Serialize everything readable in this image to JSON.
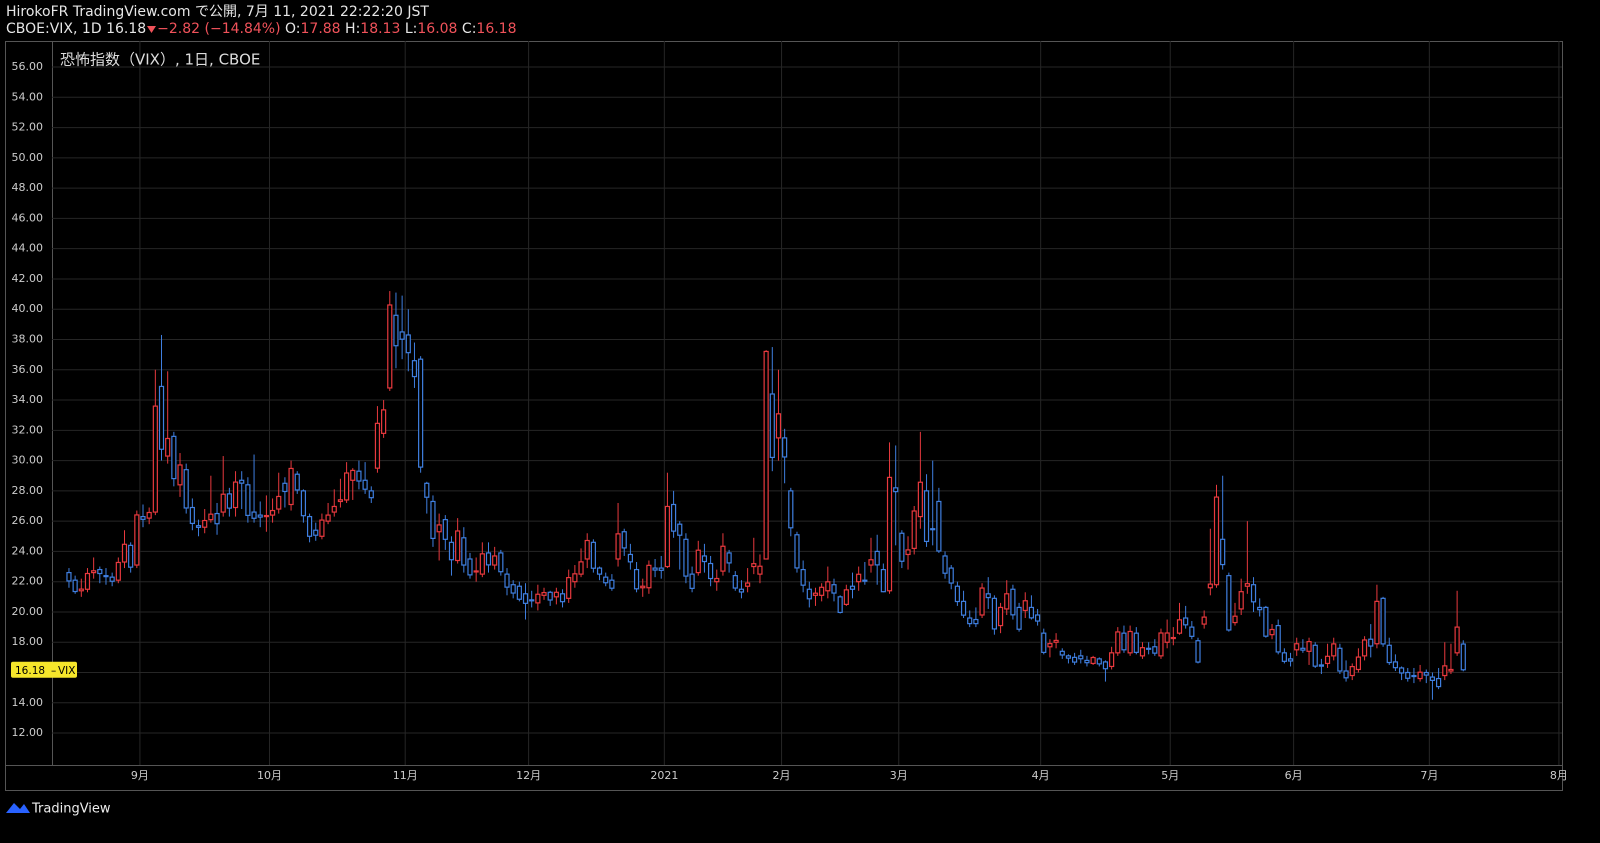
{
  "header": {
    "publisher": "HirokoFR TradingView.com で公開, 7月 11, 2021 22:22:20 JST",
    "symbol": "CBOE:VIX, 1D",
    "change": "−2.82 (−14.84%)",
    "o": "O:",
    "h": "H:",
    "l": "L:",
    "c": "C:"
  },
  "footer": {
    "brand": "TradingView"
  },
  "chart_data": {
    "type": "candlestick",
    "title": "恐怖指数（VIX）, 1日, CBOE",
    "price_label": "VIX",
    "up_color": "#e8393e",
    "down_color": "#3f7fe0",
    "grid": true,
    "ylim": [
      9.89,
      57.72
    ],
    "yticks": [
      {
        "value": 12,
        "label": "12.00"
      },
      {
        "value": 14,
        "label": "14.00"
      },
      {
        "value": 16,
        "label": "16.00"
      },
      {
        "value": 18,
        "label": "18.00"
      },
      {
        "value": 20,
        "label": "20.00"
      },
      {
        "value": 22,
        "label": "22.00"
      },
      {
        "value": 24,
        "label": "24.00"
      },
      {
        "value": 26,
        "label": "26.00"
      },
      {
        "value": 28,
        "label": "28.00"
      },
      {
        "value": 30,
        "label": "30.00"
      },
      {
        "value": 32,
        "label": "32.00"
      },
      {
        "value": 34,
        "label": "34.00"
      },
      {
        "value": 36,
        "label": "36.00"
      },
      {
        "value": 38,
        "label": "38.00"
      },
      {
        "value": 40,
        "label": "40.00"
      },
      {
        "value": 42,
        "label": "42.00"
      },
      {
        "value": 44,
        "label": "44.00"
      },
      {
        "value": 46,
        "label": "46.00"
      },
      {
        "value": 48,
        "label": "48.00"
      },
      {
        "value": 50,
        "label": "50.00"
      },
      {
        "value": 52,
        "label": "52.00"
      },
      {
        "value": 54,
        "label": "54.00"
      },
      {
        "value": 56,
        "label": "56.00"
      }
    ],
    "xlim": [
      -2.75,
      242
    ],
    "xticks": [
      {
        "value": 11.5,
        "label": "9月"
      },
      {
        "value": 32.5,
        "label": "10月"
      },
      {
        "value": 54.5,
        "label": "11月"
      },
      {
        "value": 74.5,
        "label": "12月"
      },
      {
        "value": 96.5,
        "label": "2021"
      },
      {
        "value": 115.5,
        "label": "2月"
      },
      {
        "value": 134.5,
        "label": "3月"
      },
      {
        "value": 157.5,
        "label": "4月"
      },
      {
        "value": 178.5,
        "label": "5月"
      },
      {
        "value": 198.5,
        "label": "6月"
      },
      {
        "value": 220.5,
        "label": "7月"
      },
      {
        "value": 241.5,
        "label": "8月"
      }
    ],
    "ohlc": [
      [
        22.6,
        22.9,
        21.6,
        22.05
      ],
      [
        22.1,
        22.4,
        21.2,
        21.35
      ],
      [
        21.4,
        22.2,
        21.0,
        21.51
      ],
      [
        21.5,
        22.9,
        21.3,
        22.54
      ],
      [
        22.6,
        23.6,
        22.2,
        22.72
      ],
      [
        22.8,
        23.0,
        21.9,
        22.54
      ],
      [
        22.4,
        22.9,
        21.8,
        22.37
      ],
      [
        22.3,
        22.6,
        21.7,
        22.03
      ],
      [
        22.1,
        23.6,
        21.9,
        23.27
      ],
      [
        23.3,
        25.4,
        22.9,
        24.47
      ],
      [
        24.4,
        24.6,
        22.6,
        22.96
      ],
      [
        23.1,
        26.7,
        22.9,
        26.41
      ],
      [
        26.3,
        27.1,
        25.6,
        26.12
      ],
      [
        26.2,
        26.9,
        25.8,
        26.57
      ],
      [
        26.6,
        36.0,
        26.4,
        33.6
      ],
      [
        34.9,
        38.3,
        30.0,
        30.75
      ],
      [
        30.3,
        35.9,
        29.8,
        31.46
      ],
      [
        31.6,
        31.9,
        28.3,
        28.81
      ],
      [
        28.4,
        30.5,
        27.6,
        29.71
      ],
      [
        29.4,
        29.8,
        26.5,
        26.87
      ],
      [
        26.9,
        27.5,
        25.4,
        25.85
      ],
      [
        25.7,
        26.1,
        25.0,
        25.59
      ],
      [
        25.6,
        26.8,
        25.2,
        26.04
      ],
      [
        26.1,
        29.0,
        25.9,
        26.46
      ],
      [
        26.5,
        27.2,
        25.1,
        25.83
      ],
      [
        26.6,
        30.3,
        26.3,
        27.78
      ],
      [
        27.8,
        28.2,
        26.3,
        26.86
      ],
      [
        26.9,
        29.3,
        26.3,
        28.58
      ],
      [
        28.7,
        29.3,
        26.8,
        28.51
      ],
      [
        28.4,
        28.9,
        25.9,
        26.38
      ],
      [
        26.6,
        30.4,
        25.9,
        26.19
      ],
      [
        26.4,
        27.3,
        25.6,
        26.27
      ],
      [
        26.3,
        27.7,
        25.3,
        26.37
      ],
      [
        26.4,
        27.5,
        25.9,
        26.7
      ],
      [
        26.8,
        29.2,
        26.5,
        27.63
      ],
      [
        28.5,
        28.9,
        26.9,
        27.96
      ],
      [
        27.1,
        30.0,
        26.7,
        29.48
      ],
      [
        29.1,
        29.3,
        27.8,
        28.06
      ],
      [
        28.0,
        28.1,
        25.9,
        26.36
      ],
      [
        26.3,
        26.5,
        24.6,
        25.0
      ],
      [
        25.4,
        25.9,
        24.7,
        25.07
      ],
      [
        25.0,
        26.5,
        24.8,
        26.07
      ],
      [
        26.0,
        27.2,
        25.8,
        26.4
      ],
      [
        26.6,
        28.1,
        26.3,
        26.97
      ],
      [
        27.3,
        28.8,
        26.9,
        27.41
      ],
      [
        27.4,
        29.9,
        27.2,
        29.18
      ],
      [
        28.7,
        29.5,
        27.4,
        29.35
      ],
      [
        29.3,
        30.0,
        28.1,
        28.65
      ],
      [
        28.7,
        29.9,
        27.8,
        28.11
      ],
      [
        28.0,
        28.3,
        27.2,
        27.55
      ],
      [
        29.5,
        33.6,
        29.2,
        32.46
      ],
      [
        31.8,
        34.0,
        31.5,
        33.35
      ],
      [
        34.8,
        41.2,
        34.6,
        40.28
      ],
      [
        39.6,
        41.1,
        36.1,
        37.59
      ],
      [
        38.5,
        40.9,
        36.7,
        38.02
      ],
      [
        38.3,
        40.0,
        35.9,
        37.13
      ],
      [
        36.6,
        37.8,
        34.8,
        35.55
      ],
      [
        36.7,
        36.9,
        29.2,
        29.57
      ],
      [
        28.5,
        28.6,
        26.5,
        27.58
      ],
      [
        27.3,
        27.7,
        24.3,
        24.86
      ],
      [
        25.3,
        26.5,
        23.4,
        25.75
      ],
      [
        26.1,
        26.4,
        24.1,
        24.8
      ],
      [
        24.6,
        25.0,
        22.4,
        23.45
      ],
      [
        23.4,
        26.2,
        23.2,
        25.35
      ],
      [
        24.9,
        25.6,
        22.6,
        23.1
      ],
      [
        23.5,
        23.9,
        22.2,
        22.45
      ],
      [
        22.7,
        23.6,
        22.0,
        22.71
      ],
      [
        22.5,
        24.6,
        22.3,
        23.84
      ],
      [
        23.9,
        24.6,
        22.6,
        23.11
      ],
      [
        23.1,
        24.3,
        22.8,
        23.7
      ],
      [
        23.9,
        24.1,
        22.4,
        22.66
      ],
      [
        22.5,
        22.9,
        21.1,
        21.64
      ],
      [
        21.8,
        22.1,
        20.9,
        21.25
      ],
      [
        21.7,
        22.0,
        20.7,
        20.84
      ],
      [
        21.2,
        21.9,
        19.5,
        20.57
      ],
      [
        20.8,
        21.4,
        20.3,
        20.77
      ],
      [
        20.6,
        21.8,
        20.1,
        21.17
      ],
      [
        21.1,
        21.6,
        20.8,
        21.28
      ],
      [
        21.3,
        21.4,
        20.4,
        20.79
      ],
      [
        21.0,
        21.6,
        20.5,
        21.3
      ],
      [
        21.2,
        21.5,
        20.3,
        20.68
      ],
      [
        20.9,
        22.8,
        20.6,
        22.27
      ],
      [
        22.0,
        23.1,
        21.6,
        22.52
      ],
      [
        22.5,
        24.2,
        22.3,
        23.31
      ],
      [
        23.5,
        25.2,
        22.9,
        24.72
      ],
      [
        24.6,
        24.8,
        22.6,
        22.89
      ],
      [
        22.9,
        23.0,
        22.1,
        22.5
      ],
      [
        22.3,
        22.6,
        21.7,
        21.93
      ],
      [
        22.1,
        22.5,
        21.4,
        21.57
      ],
      [
        23.5,
        27.2,
        23.0,
        25.16
      ],
      [
        25.3,
        25.5,
        23.7,
        24.23
      ],
      [
        23.8,
        24.5,
        22.8,
        23.31
      ],
      [
        22.8,
        23.3,
        21.3,
        21.53
      ],
      [
        21.6,
        22.2,
        21.0,
        21.7
      ],
      [
        21.6,
        23.4,
        21.2,
        23.08
      ],
      [
        22.9,
        23.5,
        22.3,
        22.77
      ],
      [
        22.9,
        23.7,
        22.2,
        22.75
      ],
      [
        23.0,
        29.2,
        22.9,
        26.97
      ],
      [
        27.1,
        28.0,
        24.9,
        25.34
      ],
      [
        25.8,
        26.0,
        22.8,
        25.07
      ],
      [
        24.8,
        25.2,
        21.9,
        22.37
      ],
      [
        22.5,
        23.0,
        21.3,
        21.56
      ],
      [
        22.6,
        24.7,
        22.4,
        24.08
      ],
      [
        23.7,
        24.5,
        22.6,
        23.33
      ],
      [
        23.2,
        23.7,
        21.7,
        22.21
      ],
      [
        22.0,
        22.8,
        21.4,
        22.21
      ],
      [
        22.7,
        25.2,
        22.4,
        24.34
      ],
      [
        23.9,
        24.1,
        22.6,
        23.24
      ],
      [
        22.4,
        22.7,
        21.4,
        21.58
      ],
      [
        21.5,
        22.1,
        20.9,
        21.32
      ],
      [
        21.7,
        22.9,
        21.3,
        21.91
      ],
      [
        23.0,
        24.9,
        22.5,
        23.19
      ],
      [
        22.5,
        23.8,
        21.9,
        23.02
      ],
      [
        23.5,
        37.3,
        23.5,
        37.21
      ],
      [
        34.4,
        37.5,
        29.3,
        30.21
      ],
      [
        31.5,
        36.0,
        30.0,
        33.09
      ],
      [
        31.5,
        32.1,
        28.5,
        30.24
      ],
      [
        28.0,
        28.2,
        25.0,
        25.56
      ],
      [
        25.1,
        25.3,
        22.6,
        22.91
      ],
      [
        22.8,
        23.4,
        21.3,
        21.77
      ],
      [
        21.5,
        22.0,
        20.3,
        20.87
      ],
      [
        21.1,
        21.6,
        20.4,
        21.24
      ],
      [
        21.1,
        21.9,
        20.7,
        21.63
      ],
      [
        21.4,
        23.0,
        20.9,
        21.99
      ],
      [
        21.8,
        22.2,
        20.7,
        21.25
      ],
      [
        21.0,
        21.1,
        19.9,
        19.97
      ],
      [
        20.5,
        21.8,
        20.4,
        21.46
      ],
      [
        21.7,
        22.6,
        20.9,
        21.5
      ],
      [
        22.0,
        23.0,
        21.4,
        22.49
      ],
      [
        22.1,
        23.3,
        21.8,
        22.05
      ],
      [
        23.1,
        24.9,
        22.6,
        23.45
      ],
      [
        24.0,
        25.1,
        21.8,
        23.11
      ],
      [
        22.8,
        23.2,
        21.3,
        21.34
      ],
      [
        21.4,
        31.2,
        21.2,
        28.89
      ],
      [
        28.2,
        31.0,
        24.4,
        27.95
      ],
      [
        25.2,
        25.4,
        22.9,
        23.35
      ],
      [
        23.8,
        25.0,
        22.8,
        24.1
      ],
      [
        24.2,
        27.0,
        23.8,
        26.67
      ],
      [
        26.3,
        31.9,
        25.5,
        28.57
      ],
      [
        28.0,
        29.1,
        24.3,
        24.66
      ],
      [
        25.5,
        30.0,
        24.4,
        25.47
      ],
      [
        27.3,
        28.2,
        23.9,
        24.03
      ],
      [
        23.7,
        24.0,
        22.2,
        22.56
      ],
      [
        22.9,
        23.1,
        21.5,
        21.91
      ],
      [
        21.7,
        22.0,
        20.4,
        20.69
      ],
      [
        20.7,
        21.4,
        19.6,
        19.79
      ],
      [
        19.6,
        20.1,
        19.0,
        19.23
      ],
      [
        19.5,
        20.3,
        19.0,
        19.23
      ],
      [
        19.8,
        21.9,
        19.6,
        21.58
      ],
      [
        21.2,
        22.3,
        20.2,
        20.95
      ],
      [
        20.9,
        21.1,
        18.5,
        18.88
      ],
      [
        19.1,
        20.6,
        18.6,
        20.3
      ],
      [
        20.2,
        22.1,
        19.8,
        21.2
      ],
      [
        21.5,
        21.8,
        19.5,
        19.81
      ],
      [
        20.3,
        20.6,
        18.7,
        18.86
      ],
      [
        20.1,
        21.3,
        19.6,
        20.74
      ],
      [
        20.3,
        21.1,
        19.5,
        19.61
      ],
      [
        19.8,
        20.2,
        19.1,
        19.4
      ],
      [
        18.6,
        18.9,
        17.2,
        17.33
      ],
      [
        17.7,
        18.2,
        17.0,
        17.91
      ],
      [
        18.0,
        18.6,
        17.6,
        18.12
      ],
      [
        17.4,
        17.6,
        16.9,
        17.16
      ],
      [
        17.1,
        17.2,
        16.6,
        16.95
      ],
      [
        17.0,
        17.3,
        16.5,
        16.69
      ],
      [
        17.1,
        17.5,
        16.6,
        16.91
      ],
      [
        16.8,
        17.1,
        16.4,
        16.65
      ],
      [
        16.6,
        17.1,
        16.5,
        16.99
      ],
      [
        16.9,
        17.0,
        16.4,
        16.57
      ],
      [
        16.7,
        16.8,
        15.4,
        16.25
      ],
      [
        16.4,
        17.7,
        16.2,
        17.3
      ],
      [
        17.3,
        19.0,
        17.1,
        18.68
      ],
      [
        18.6,
        19.1,
        17.3,
        17.5
      ],
      [
        17.3,
        19.1,
        17.1,
        18.71
      ],
      [
        18.6,
        19.0,
        17.2,
        17.33
      ],
      [
        17.1,
        18.0,
        16.9,
        17.64
      ],
      [
        17.6,
        18.0,
        17.2,
        17.56
      ],
      [
        17.7,
        18.2,
        17.1,
        17.28
      ],
      [
        17.1,
        18.9,
        16.9,
        18.61
      ],
      [
        18.0,
        19.5,
        17.6,
        18.61
      ],
      [
        18.3,
        19.0,
        17.8,
        18.31
      ],
      [
        18.6,
        20.6,
        18.5,
        19.48
      ],
      [
        19.6,
        20.4,
        18.9,
        19.15
      ],
      [
        19.0,
        19.4,
        18.2,
        18.39
      ],
      [
        18.1,
        18.3,
        16.6,
        16.69
      ],
      [
        19.2,
        20.1,
        18.9,
        19.66
      ],
      [
        21.6,
        25.5,
        21.1,
        21.84
      ],
      [
        21.8,
        28.4,
        21.6,
        27.59
      ],
      [
        24.8,
        29.0,
        22.8,
        23.13
      ],
      [
        22.4,
        22.6,
        18.7,
        18.81
      ],
      [
        19.3,
        20.6,
        19.1,
        19.72
      ],
      [
        20.2,
        22.2,
        19.8,
        21.34
      ],
      [
        21.7,
        26.0,
        21.2,
        21.87
      ],
      [
        21.8,
        22.3,
        20.0,
        20.67
      ],
      [
        20.3,
        20.9,
        19.7,
        20.15
      ],
      [
        20.3,
        20.4,
        18.3,
        18.4
      ],
      [
        18.5,
        19.2,
        18.2,
        18.84
      ],
      [
        19.1,
        19.5,
        17.2,
        17.36
      ],
      [
        17.3,
        17.6,
        16.6,
        16.74
      ],
      [
        16.9,
        17.3,
        16.4,
        16.76
      ],
      [
        17.5,
        18.3,
        17.1,
        17.9
      ],
      [
        17.6,
        18.2,
        17.3,
        17.48
      ],
      [
        17.4,
        18.3,
        16.5,
        18.04
      ],
      [
        17.8,
        18.0,
        16.3,
        16.42
      ],
      [
        16.5,
        16.9,
        15.9,
        16.42
      ],
      [
        16.6,
        17.9,
        16.3,
        17.07
      ],
      [
        17.1,
        18.3,
        16.8,
        17.89
      ],
      [
        17.6,
        17.9,
        15.9,
        16.1
      ],
      [
        16.1,
        16.8,
        15.4,
        15.65
      ],
      [
        15.8,
        16.6,
        15.5,
        16.39
      ],
      [
        16.2,
        17.6,
        16.0,
        17.02
      ],
      [
        17.1,
        18.4,
        16.8,
        18.15
      ],
      [
        18.2,
        19.2,
        17.0,
        17.75
      ],
      [
        17.9,
        21.8,
        17.6,
        20.7
      ],
      [
        20.9,
        21.0,
        17.7,
        17.89
      ],
      [
        17.8,
        18.3,
        16.5,
        16.66
      ],
      [
        16.7,
        17.2,
        16.1,
        16.32
      ],
      [
        16.3,
        16.4,
        15.5,
        15.97
      ],
      [
        16.0,
        16.3,
        15.4,
        15.62
      ],
      [
        15.8,
        16.3,
        15.3,
        15.76
      ],
      [
        15.6,
        16.5,
        15.4,
        16.02
      ],
      [
        16.0,
        16.2,
        15.3,
        15.83
      ],
      [
        15.7,
        16.0,
        14.2,
        15.48
      ],
      [
        15.6,
        16.3,
        14.9,
        15.07
      ],
      [
        15.8,
        18.0,
        15.5,
        16.44
      ],
      [
        16.1,
        17.9,
        15.9,
        16.2
      ],
      [
        17.3,
        21.4,
        17.1,
        19.0
      ],
      [
        17.88,
        18.13,
        16.08,
        16.18
      ]
    ]
  }
}
